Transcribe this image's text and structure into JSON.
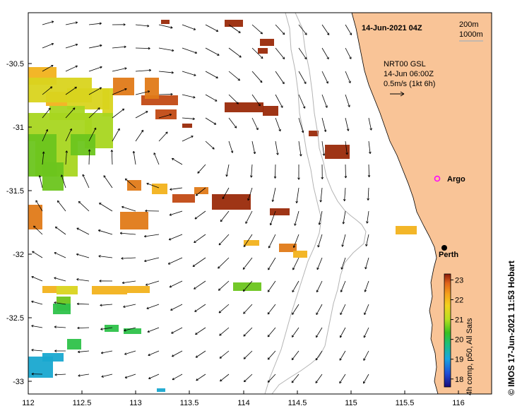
{
  "map": {
    "title": "14-Jun-2021 04Z",
    "depth_contours": [
      "200m",
      "1000m"
    ],
    "current_source": "NRT00 GSL",
    "current_time": "14-Jun 06:00Z",
    "current_scale": "0.5m/s (1kt 6h)",
    "lon_ticks": [
      "112",
      "112.5",
      "113",
      "113.5",
      "114",
      "114.5",
      "115",
      "115.5",
      "116"
    ],
    "lat_ticks": [
      "-30.5",
      "-31",
      "-31.5",
      "-32",
      "-32.5",
      "-33"
    ],
    "places": [
      {
        "name": "Argo"
      },
      {
        "name": "Perth"
      }
    ],
    "colorbar": {
      "label": "4h comp, p50, All Sats",
      "ticks": [
        "23",
        "22",
        "21",
        "20",
        "19",
        "18"
      ],
      "min": 17.6,
      "max": 23.3
    },
    "credit": "© IMOS 17-Jun-2021 11:53 Hobart"
  },
  "colors": {
    "land": "#f9c497",
    "contour": "#b4b4b4",
    "argo": "#ff00ff"
  }
}
